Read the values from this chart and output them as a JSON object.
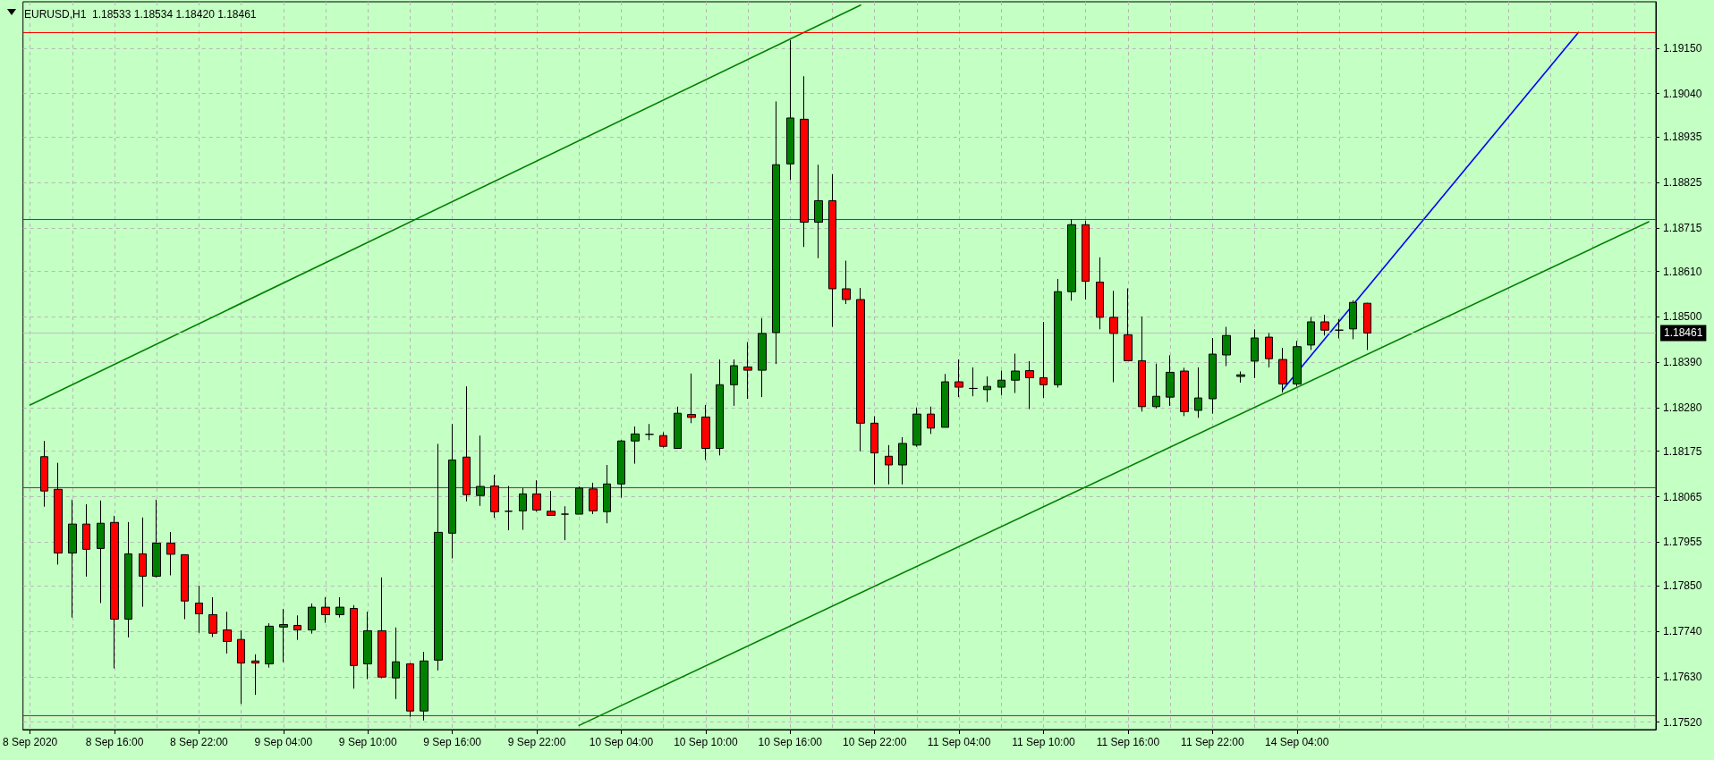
{
  "chart_data": {
    "type": "candlestick",
    "title": "EURUSD,H1  1.18533 1.18534 1.18420 1.18461",
    "categories": [
      "8 Sep 2020",
      null,
      null,
      null,
      null,
      null,
      "8 Sep 16:00",
      null,
      null,
      null,
      null,
      null,
      "8 Sep 22:00",
      null,
      null,
      null,
      null,
      null,
      "9 Sep 04:00",
      null,
      null,
      null,
      null,
      null,
      "9 Sep 10:00",
      null,
      null,
      null,
      null,
      null,
      "9 Sep 16:00",
      null,
      null,
      null,
      null,
      null,
      "9 Sep 22:00",
      null,
      null,
      null,
      null,
      null,
      "10 Sep 04:00",
      null,
      null,
      null,
      null,
      null,
      "10 Sep 10:00",
      null,
      null,
      null,
      null,
      null,
      "10 Sep 16:00",
      null,
      null,
      null,
      null,
      null,
      "10 Sep 22:00",
      null,
      null,
      null,
      null,
      null,
      "11 Sep 04:00",
      null,
      null,
      null,
      null,
      null,
      "11 Sep 10:00",
      null,
      null,
      null,
      null,
      null,
      "11 Sep 16:00",
      null,
      null,
      null,
      null,
      null,
      "11 Sep 22:00",
      null,
      null,
      null,
      null,
      null,
      "14 Sep 04:00",
      null,
      null,
      null,
      null,
      null,
      null,
      null,
      null,
      null,
      null,
      null,
      null,
      null,
      null,
      null,
      null,
      null,
      null,
      null,
      null,
      null,
      null,
      null,
      null,
      null
    ],
    "ohlc": [
      null,
      [
        1.18162,
        1.182,
        1.18041,
        1.18079
      ],
      [
        1.18083,
        1.18147,
        1.17901,
        1.17929
      ],
      [
        1.17929,
        1.18058,
        1.17773,
        1.17999
      ],
      [
        1.17999,
        1.18047,
        1.17872,
        1.17938
      ],
      [
        1.1794,
        1.18056,
        1.17808,
        1.18001
      ],
      [
        1.18003,
        1.18019,
        1.1765,
        1.17769
      ],
      [
        1.17769,
        1.18004,
        1.17725,
        1.17927
      ],
      [
        1.17927,
        1.18015,
        1.17799,
        1.17873
      ],
      [
        1.17873,
        1.18058,
        1.1787,
        1.17953
      ],
      [
        1.17953,
        1.1798,
        1.17875,
        1.17926
      ],
      [
        1.17925,
        1.17925,
        1.17769,
        1.17813
      ],
      [
        1.17808,
        1.1785,
        1.17736,
        1.17782
      ],
      [
        1.1778,
        1.17822,
        1.17726,
        1.17735
      ],
      [
        1.17743,
        1.17787,
        1.17686,
        1.17715
      ],
      [
        1.1772,
        1.17742,
        1.17564,
        1.17663
      ],
      [
        1.17668,
        1.17684,
        1.17586,
        1.17663
      ],
      [
        1.17661,
        1.17759,
        1.17652,
        1.17752
      ],
      [
        1.1775,
        1.17794,
        1.17665,
        1.17756
      ],
      [
        1.17754,
        1.17778,
        1.17719,
        1.17743
      ],
      [
        1.17743,
        1.17807,
        1.17734,
        1.17798
      ],
      [
        1.17798,
        1.17822,
        1.1776,
        1.1778
      ],
      [
        1.1778,
        1.17822,
        1.17773,
        1.17798
      ],
      [
        1.17795,
        1.17803,
        1.17601,
        1.17657
      ],
      [
        1.17661,
        1.17787,
        1.17624,
        1.17741
      ],
      [
        1.17741,
        1.1787,
        1.17626,
        1.17629
      ],
      [
        1.17627,
        1.17749,
        1.17576,
        1.17666
      ],
      [
        1.17661,
        1.17663,
        1.17533,
        1.17547
      ],
      [
        1.17547,
        1.1769,
        1.17524,
        1.17668
      ],
      [
        1.1767,
        1.18193,
        1.17645,
        1.17979
      ],
      [
        1.17977,
        1.18241,
        1.17916,
        1.18154
      ],
      [
        1.18161,
        1.18332,
        1.18054,
        1.1807
      ],
      [
        1.18068,
        1.18213,
        1.18043,
        1.1809
      ],
      [
        1.18091,
        1.18118,
        1.18014,
        1.18029
      ],
      [
        1.1803,
        1.18091,
        1.17984,
        1.1803
      ],
      [
        1.18031,
        1.18086,
        1.17985,
        1.18072
      ],
      [
        1.18072,
        1.18105,
        1.18029,
        1.18033
      ],
      [
        1.1803,
        1.18079,
        1.1802,
        1.1802
      ],
      [
        1.18023,
        1.18042,
        1.1796,
        1.18023
      ],
      [
        1.18023,
        1.1809,
        1.18023,
        1.18086
      ],
      [
        1.18084,
        1.18099,
        1.18023,
        1.18031
      ],
      [
        1.18029,
        1.18142,
        1.18001,
        1.18096
      ],
      [
        1.18096,
        1.18202,
        1.18063,
        1.182
      ],
      [
        1.182,
        1.18235,
        1.18145,
        1.18217
      ],
      [
        1.18216,
        1.18241,
        1.18202,
        1.18216
      ],
      [
        1.18213,
        1.18221,
        1.18184,
        1.18187
      ],
      [
        1.18182,
        1.18283,
        1.18182,
        1.18267
      ],
      [
        1.18264,
        1.18363,
        1.18243,
        1.18257
      ],
      [
        1.18258,
        1.18287,
        1.18154,
        1.18182
      ],
      [
        1.18182,
        1.18397,
        1.18165,
        1.18336
      ],
      [
        1.18336,
        1.18397,
        1.18285,
        1.18382
      ],
      [
        1.18379,
        1.18439,
        1.18302,
        1.18371
      ],
      [
        1.18371,
        1.18497,
        1.18306,
        1.1846
      ],
      [
        1.18462,
        1.19021,
        1.18386,
        1.18868
      ],
      [
        1.1887,
        1.19169,
        1.18831,
        1.18981
      ],
      [
        1.18978,
        1.19082,
        1.18669,
        1.18729
      ],
      [
        1.18729,
        1.18868,
        1.18642,
        1.18781
      ],
      [
        1.18781,
        1.18845,
        1.18476,
        1.18568
      ],
      [
        1.18568,
        1.18636,
        1.18531,
        1.18542
      ],
      [
        1.18542,
        1.1857,
        1.18175,
        1.18243
      ],
      [
        1.18243,
        1.1826,
        1.18095,
        1.18171
      ],
      [
        1.18163,
        1.1819,
        1.18095,
        1.18142
      ],
      [
        1.18142,
        1.18209,
        1.18095,
        1.18194
      ],
      [
        1.1819,
        1.18281,
        1.18186,
        1.18265
      ],
      [
        1.18265,
        1.18283,
        1.18217,
        1.18231
      ],
      [
        1.18233,
        1.18362,
        1.18233,
        1.18343
      ],
      [
        1.18343,
        1.18397,
        1.18306,
        1.1833
      ],
      [
        1.18327,
        1.18378,
        1.18308,
        1.18327
      ],
      [
        1.18324,
        1.18356,
        1.18294,
        1.18332
      ],
      [
        1.1833,
        1.1837,
        1.18311,
        1.18347
      ],
      [
        1.18347,
        1.18411,
        1.18316,
        1.18369
      ],
      [
        1.1837,
        1.18393,
        1.18277,
        1.18353
      ],
      [
        1.18353,
        1.18488,
        1.18304,
        1.18336
      ],
      [
        1.18336,
        1.18592,
        1.18329,
        1.18561
      ],
      [
        1.18561,
        1.18736,
        1.18539,
        1.18723
      ],
      [
        1.18723,
        1.18733,
        1.18542,
        1.18586
      ],
      [
        1.18584,
        1.18644,
        1.1847,
        1.18499
      ],
      [
        1.18499,
        1.18563,
        1.18342,
        1.1846
      ],
      [
        1.18457,
        1.18569,
        1.18393,
        1.18394
      ],
      [
        1.18394,
        1.18501,
        1.18271,
        1.18283
      ],
      [
        1.18283,
        1.18387,
        1.18279,
        1.18308
      ],
      [
        1.18306,
        1.18407,
        1.18285,
        1.18366
      ],
      [
        1.18369,
        1.18377,
        1.1826,
        1.18271
      ],
      [
        1.18274,
        1.18378,
        1.18256,
        1.18304
      ],
      [
        1.18302,
        1.18449,
        1.18266,
        1.1841
      ],
      [
        1.18408,
        1.18476,
        1.18381,
        1.18455
      ],
      [
        1.18356,
        1.18368,
        1.18341,
        1.1836
      ],
      [
        1.18393,
        1.1847,
        1.18352,
        1.18449
      ],
      [
        1.18451,
        1.18461,
        1.18378,
        1.18399
      ],
      [
        1.18397,
        1.18425,
        1.18317,
        1.18338
      ],
      [
        1.18338,
        1.18442,
        1.18332,
        1.18428
      ],
      [
        1.18432,
        1.185,
        1.1842,
        1.18488
      ],
      [
        1.18488,
        1.18505,
        1.18455,
        1.18468
      ],
      [
        1.18468,
        1.18495,
        1.18448,
        1.18468
      ],
      [
        1.18471,
        1.1854,
        1.18446,
        1.18535
      ],
      [
        1.18533,
        1.18534,
        1.1842,
        1.18461
      ],
      null,
      null,
      null,
      null,
      null,
      null,
      null,
      null,
      null,
      null,
      null,
      null,
      null,
      null,
      null,
      null,
      null,
      null,
      null,
      null
    ],
    "colors": [
      null,
      "#ff0000",
      "#ff0000",
      "#008000",
      "#ff0000",
      "#008000",
      "#ff0000",
      "#008000",
      "#ff0000",
      "#008000",
      "#ff0000",
      "#ff0000",
      "#ff0000",
      "#ff0000",
      "#ff0000",
      "#ff0000",
      "#ff0000",
      "#008000",
      "#008000",
      "#ff0000",
      "#008000",
      "#ff0000",
      "#008000",
      "#ff0000",
      "#008000",
      "#ff0000",
      "#008000",
      "#ff0000",
      "#008000",
      "#008000",
      "#008000",
      "#ff0000",
      "#008000",
      "#ff0000",
      "#000000",
      "#008000",
      "#ff0000",
      "#ff0000",
      "#000000",
      "#008000",
      "#ff0000",
      "#008000",
      "#008000",
      "#008000",
      "#000000",
      "#ff0000",
      "#008000",
      "#ff0000",
      "#ff0000",
      "#008000",
      "#008000",
      "#ff0000",
      "#008000",
      "#008000",
      "#008000",
      "#ff0000",
      "#008000",
      "#ff0000",
      "#ff0000",
      "#ff0000",
      "#ff0000",
      "#ff0000",
      "#008000",
      "#008000",
      "#ff0000",
      "#008000",
      "#ff0000",
      "#000000",
      "#008000",
      "#008000",
      "#008000",
      "#ff0000",
      "#ff0000",
      "#008000",
      "#008000",
      "#ff0000",
      "#ff0000",
      "#ff0000",
      "#ff0000",
      "#ff0000",
      "#008000",
      "#008000",
      "#ff0000",
      "#008000",
      "#008000",
      "#008000",
      "#008000",
      "#008000",
      "#ff0000",
      "#ff0000",
      "#008000",
      "#008000",
      "#ff0000",
      "#000000",
      "#008000",
      "#ff0000",
      null,
      null,
      null,
      null,
      null,
      null,
      null,
      null,
      null,
      null,
      null,
      null,
      null,
      null,
      null,
      null,
      null,
      null,
      null,
      null
    ],
    "ylim": [
      1.17502,
      1.19262
    ],
    "yticks": [
      {
        "value": 1.1752,
        "label": "1.17520"
      },
      {
        "value": 1.1763,
        "label": "1.17630"
      },
      {
        "value": 1.1774,
        "label": "1.17740"
      },
      {
        "value": 1.1785,
        "label": "1.17850"
      },
      {
        "value": 1.17955,
        "label": "1.17955"
      },
      {
        "value": 1.18065,
        "label": "1.18065"
      },
      {
        "value": 1.18175,
        "label": "1.18175"
      },
      {
        "value": 1.1828,
        "label": "1.18280"
      },
      {
        "value": 1.1839,
        "label": "1.18390"
      },
      {
        "value": 1.185,
        "label": "1.18500"
      },
      {
        "value": 1.1861,
        "label": "1.18610"
      },
      {
        "value": 1.18715,
        "label": "1.18715"
      },
      {
        "value": 1.18825,
        "label": "1.18825"
      },
      {
        "value": 1.18935,
        "label": "1.18935"
      },
      {
        "value": 1.1904,
        "label": "1.19040"
      },
      {
        "value": 1.1915,
        "label": "1.19150"
      }
    ],
    "grid": true,
    "ref_lines": [
      {
        "axis": "y",
        "value": 1.19188,
        "color": "#ff0000"
      },
      {
        "axis": "y",
        "value": 1.18735,
        "color": "#ff0000"
      },
      {
        "axis": "y",
        "value": 1.18087,
        "color": "#ff0000"
      },
      {
        "axis": "y",
        "value": 1.17536,
        "color": "#ff0000"
      },
      {
        "axis": "y",
        "value": 1.18461,
        "label": "1.18461",
        "color": "#c0c0c0"
      }
    ],
    "series": [
      {
        "type": "line",
        "color": "#008000",
        "values": [
          1.18287,
          null,
          null,
          null,
          null,
          null,
          null,
          null,
          null,
          null,
          null,
          null,
          null,
          null,
          null,
          null,
          null,
          null,
          null,
          null,
          null,
          null,
          null,
          null,
          null,
          null,
          null,
          null,
          null,
          null,
          null,
          null,
          null,
          null,
          null,
          null,
          null,
          null,
          null,
          null,
          null,
          null,
          null,
          null,
          null,
          null,
          null,
          null,
          null,
          null,
          null,
          null,
          null,
          null,
          null,
          null,
          null,
          null,
          null,
          1.19254,
          null,
          null,
          null,
          null,
          null,
          null,
          null,
          null,
          null,
          null,
          null,
          null,
          null,
          null,
          null,
          null,
          null,
          null,
          null,
          null,
          null,
          null,
          null,
          null,
          null,
          null,
          null,
          null,
          null,
          null,
          null,
          null,
          null,
          null,
          null,
          null,
          null,
          null,
          null,
          null,
          null,
          null,
          null,
          null,
          null,
          null,
          null,
          null,
          null,
          null,
          null,
          null,
          null,
          null,
          null,
          null
        ]
      },
      {
        "type": "line",
        "color": "#008000",
        "values": [
          null,
          null,
          null,
          null,
          null,
          null,
          null,
          null,
          null,
          null,
          null,
          null,
          null,
          null,
          null,
          null,
          null,
          null,
          null,
          null,
          null,
          null,
          null,
          null,
          null,
          null,
          null,
          null,
          null,
          null,
          null,
          null,
          null,
          null,
          null,
          null,
          null,
          null,
          null,
          1.17512,
          null,
          null,
          null,
          null,
          null,
          null,
          null,
          null,
          null,
          null,
          null,
          null,
          null,
          null,
          null,
          null,
          null,
          null,
          null,
          null,
          null,
          null,
          null,
          null,
          null,
          null,
          null,
          null,
          null,
          null,
          null,
          null,
          null,
          null,
          null,
          null,
          null,
          null,
          null,
          null,
          null,
          null,
          null,
          null,
          null,
          null,
          null,
          null,
          null,
          null,
          null,
          null,
          null,
          null,
          null,
          null,
          null,
          null,
          null,
          null,
          null,
          null,
          null,
          null,
          null,
          null,
          null,
          null,
          null,
          null,
          null,
          null,
          null,
          null,
          null,
          1.1873
        ]
      },
      {
        "type": "line",
        "color": "#0000ff",
        "values": [
          null,
          null,
          null,
          null,
          null,
          null,
          null,
          null,
          null,
          null,
          null,
          null,
          null,
          null,
          null,
          null,
          null,
          null,
          null,
          null,
          null,
          null,
          null,
          null,
          null,
          null,
          null,
          null,
          null,
          null,
          null,
          null,
          null,
          null,
          null,
          null,
          null,
          null,
          null,
          null,
          null,
          null,
          null,
          null,
          null,
          null,
          null,
          null,
          null,
          null,
          null,
          null,
          null,
          null,
          null,
          null,
          null,
          null,
          null,
          null,
          null,
          null,
          null,
          null,
          null,
          null,
          null,
          null,
          null,
          null,
          null,
          null,
          null,
          null,
          null,
          null,
          null,
          null,
          null,
          null,
          null,
          null,
          null,
          null,
          null,
          null,
          null,
          null,
          null,
          1.18324,
          null,
          null,
          null,
          null,
          null,
          null,
          null,
          null,
          null,
          null,
          null,
          null,
          null,
          null,
          null,
          null,
          null,
          null,
          null,
          null,
          1.19188,
          null,
          null,
          null,
          null,
          null
        ]
      }
    ]
  }
}
